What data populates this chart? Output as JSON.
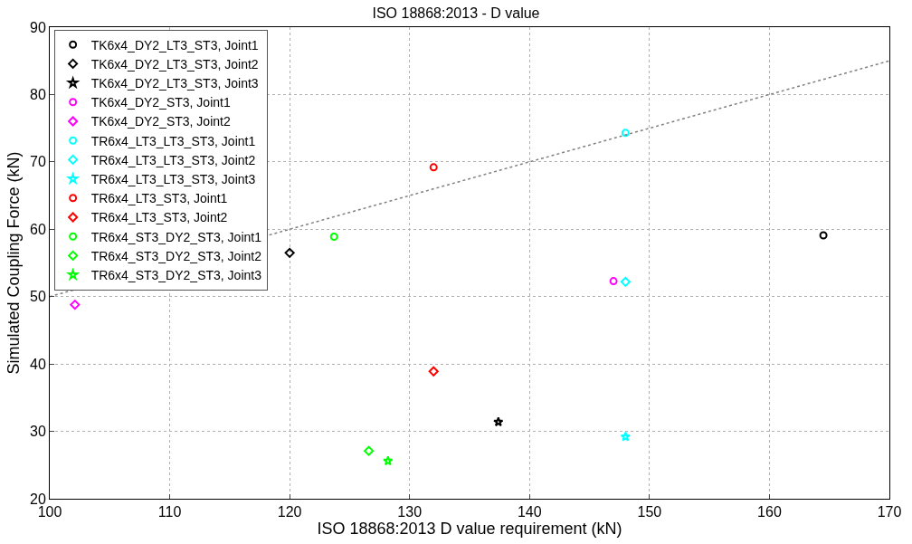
{
  "chart_data": {
    "type": "scatter",
    "title": "ISO 18868:2013 - D value",
    "xlabel": "ISO 18868:2013 D value requirement (kN)",
    "ylabel": "Simulated Coupling Force (kN)",
    "xlim": [
      100,
      170
    ],
    "xticks": [
      100,
      110,
      120,
      130,
      140,
      150,
      160,
      170
    ],
    "ylim": [
      20,
      90
    ],
    "yticks": [
      20,
      30,
      40,
      50,
      60,
      70,
      80,
      90
    ],
    "grid": true,
    "legend": "top left",
    "series": [
      {
        "name": "TK6x4_DY2_LT3_ST3, Joint1",
        "color": "#000000",
        "marker": "circle",
        "x": [
          164.5
        ],
        "values": [
          59.1
        ]
      },
      {
        "name": "TK6x4_DY2_LT3_ST3, Joint2",
        "color": "#000000",
        "marker": "diamond",
        "x": [
          120
        ],
        "values": [
          56.5
        ]
      },
      {
        "name": "TK6x4_DY2_LT3_ST3, Joint3",
        "color": "#000000",
        "marker": "star",
        "x": [
          137.4
        ],
        "values": [
          31.4
        ]
      },
      {
        "name": "TK6x4_DY2_ST3, Joint1",
        "color": "#ff00ff",
        "marker": "circle",
        "x": [
          147.0
        ],
        "values": [
          52.3
        ]
      },
      {
        "name": "TK6x4_DY2_ST3, Joint2",
        "color": "#ff00ff",
        "marker": "diamond",
        "x": [
          102.1
        ],
        "values": [
          48.8
        ]
      },
      {
        "name": "TR6x4_LT3_LT3_ST3, Joint1",
        "color": "#00ffff",
        "marker": "circle",
        "x": [
          148.0
        ],
        "values": [
          74.3
        ]
      },
      {
        "name": "TR6x4_LT3_LT3_ST3, Joint2",
        "color": "#00ffff",
        "marker": "diamond",
        "x": [
          148.0
        ],
        "values": [
          52.2
        ]
      },
      {
        "name": "TR6x4_LT3_LT3_ST3, Joint3",
        "color": "#00ffff",
        "marker": "star",
        "x": [
          148.0
        ],
        "values": [
          29.2
        ]
      },
      {
        "name": "TR6x4_LT3_ST3, Joint1",
        "color": "#ff0000",
        "marker": "circle",
        "x": [
          132.0
        ],
        "values": [
          69.2
        ]
      },
      {
        "name": "TR6x4_LT3_ST3, Joint2",
        "color": "#ff0000",
        "marker": "diamond",
        "x": [
          132.0
        ],
        "values": [
          38.9
        ]
      },
      {
        "name": "TR6x4_ST3_DY2_ST3, Joint1",
        "color": "#00ff00",
        "marker": "circle",
        "x": [
          123.7
        ],
        "values": [
          58.9
        ]
      },
      {
        "name": "TR6x4_ST3_DY2_ST3, Joint2",
        "color": "#00ff00",
        "marker": "diamond",
        "x": [
          126.6
        ],
        "values": [
          27.1
        ]
      },
      {
        "name": "TR6x4_ST3_DY2_ST3, Joint3",
        "color": "#00ff00",
        "marker": "star",
        "x": [
          128.2
        ],
        "values": [
          25.6
        ]
      },
      {
        "type": "line",
        "color": "#808080",
        "line_style": "dotted",
        "marker": "none",
        "x": [
          100,
          170
        ],
        "values": [
          50,
          85
        ]
      }
    ]
  }
}
